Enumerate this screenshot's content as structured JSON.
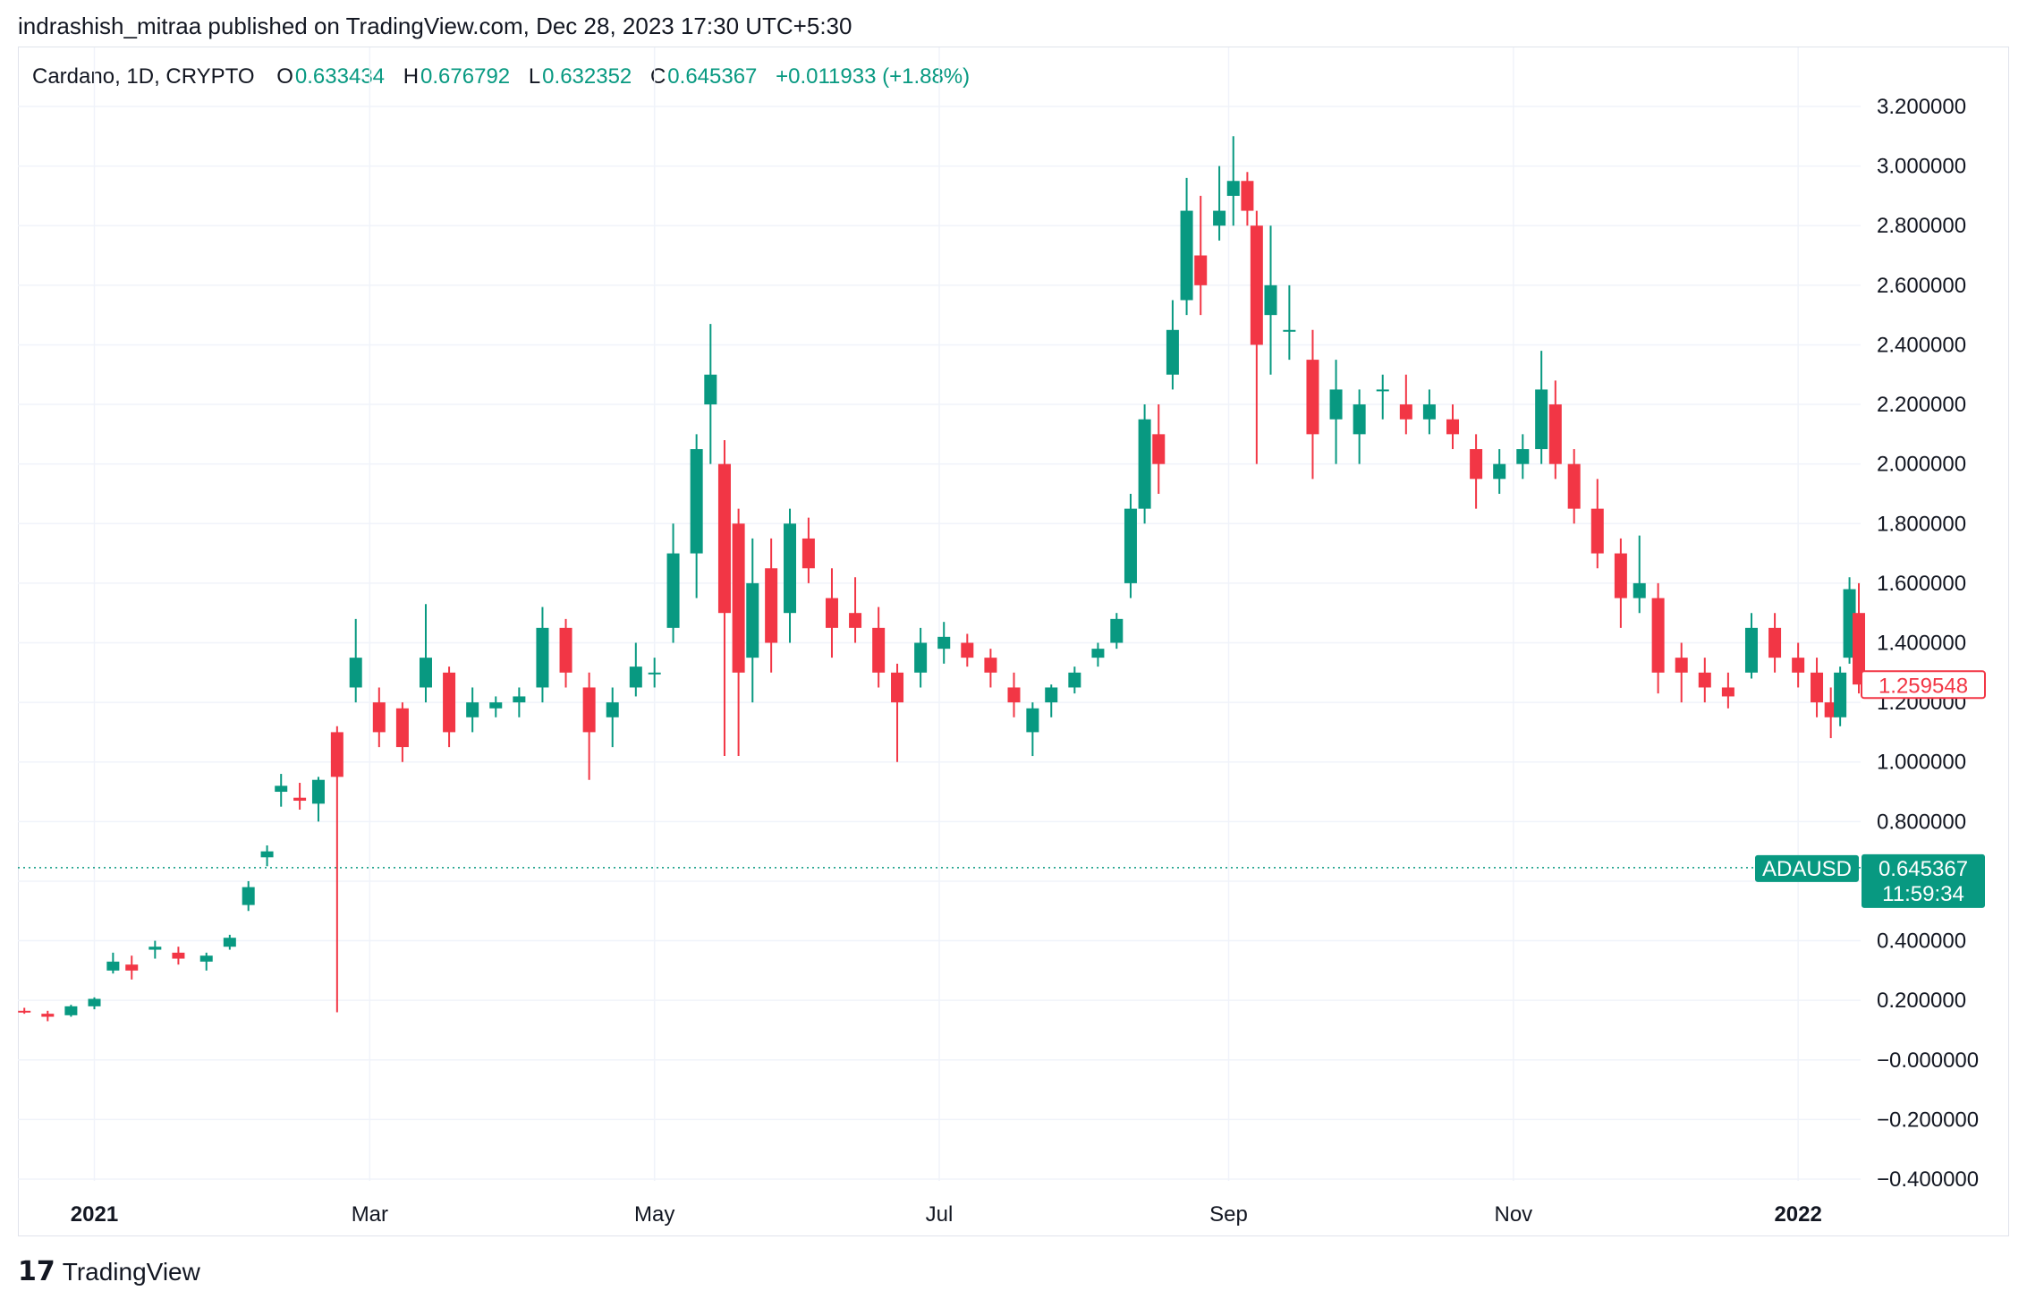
{
  "publisher_line": "indrashish_mitraa published on TradingView.com, Dec 28, 2023 17:30 UTC+5:30",
  "legend": {
    "symbol": "Cardano, 1D, CRYPTO",
    "o_label": "O",
    "o_value": "0.633434",
    "h_label": "H",
    "h_value": "0.676792",
    "l_label": "L",
    "l_value": "0.632352",
    "c_label": "C",
    "c_value": "0.645367",
    "change": "+0.011933 (+1.88%)"
  },
  "colors": {
    "up": "#089981",
    "down": "#f23645",
    "grid": "#f0f3fa",
    "axis_text": "#131722"
  },
  "price_axis": {
    "labels": [
      "3.200000",
      "3.000000",
      "2.800000",
      "2.600000",
      "2.400000",
      "2.200000",
      "2.000000",
      "1.800000",
      "1.600000",
      "1.400000",
      "1.200000",
      "1.000000",
      "0.800000",
      "0.400000",
      "0.200000",
      "−0.000000",
      "−0.200000",
      "−0.400000"
    ]
  },
  "time_axis": {
    "labels": [
      {
        "text": "2021",
        "bold": true
      },
      {
        "text": "Mar",
        "bold": false
      },
      {
        "text": "May",
        "bold": false
      },
      {
        "text": "Jul",
        "bold": false
      },
      {
        "text": "Sep",
        "bold": false
      },
      {
        "text": "Nov",
        "bold": false
      },
      {
        "text": "2022",
        "bold": true
      }
    ]
  },
  "last_price_badge": "1.259548",
  "current_badge": {
    "symbol": "ADAUSD",
    "price": "0.645367",
    "countdown": "11:59:34"
  },
  "footer": {
    "brand": "TradingView",
    "mark": "17"
  },
  "chart_data": {
    "type": "candlestick",
    "title": "Cardano, 1D, CRYPTO",
    "ylim": [
      -0.4,
      3.3
    ],
    "x_start": "2020-12-16",
    "x_end": "2022-01-14",
    "current_price_line": 0.645367,
    "ohlc": [
      [
        "2020-12-17",
        0.165,
        0.175,
        0.155,
        0.16
      ],
      [
        "2020-12-22",
        0.155,
        0.165,
        0.13,
        0.145
      ],
      [
        "2020-12-27",
        0.15,
        0.185,
        0.145,
        0.18
      ],
      [
        "2021-01-01",
        0.18,
        0.21,
        0.17,
        0.205
      ],
      [
        "2021-01-05",
        0.3,
        0.36,
        0.29,
        0.33
      ],
      [
        "2021-01-09",
        0.32,
        0.35,
        0.27,
        0.3
      ],
      [
        "2021-01-14",
        0.37,
        0.4,
        0.34,
        0.38
      ],
      [
        "2021-01-19",
        0.36,
        0.38,
        0.32,
        0.34
      ],
      [
        "2021-01-25",
        0.33,
        0.36,
        0.3,
        0.35
      ],
      [
        "2021-01-30",
        0.38,
        0.42,
        0.37,
        0.41
      ],
      [
        "2021-02-03",
        0.52,
        0.6,
        0.5,
        0.58
      ],
      [
        "2021-02-07",
        0.68,
        0.72,
        0.65,
        0.7
      ],
      [
        "2021-02-10",
        0.9,
        0.96,
        0.85,
        0.92
      ],
      [
        "2021-02-14",
        0.88,
        0.93,
        0.84,
        0.87
      ],
      [
        "2021-02-18",
        0.86,
        0.95,
        0.8,
        0.94
      ],
      [
        "2021-02-22",
        1.1,
        1.12,
        0.16,
        0.95
      ],
      [
        "2021-02-26",
        1.25,
        1.48,
        1.2,
        1.35
      ],
      [
        "2021-03-03",
        1.2,
        1.25,
        1.05,
        1.1
      ],
      [
        "2021-03-08",
        1.18,
        1.2,
        1.0,
        1.05
      ],
      [
        "2021-03-13",
        1.25,
        1.53,
        1.2,
        1.35
      ],
      [
        "2021-03-18",
        1.3,
        1.32,
        1.05,
        1.1
      ],
      [
        "2021-03-23",
        1.15,
        1.25,
        1.1,
        1.2
      ],
      [
        "2021-03-28",
        1.18,
        1.22,
        1.15,
        1.2
      ],
      [
        "2021-04-02",
        1.2,
        1.25,
        1.15,
        1.22
      ],
      [
        "2021-04-07",
        1.25,
        1.52,
        1.2,
        1.45
      ],
      [
        "2021-04-12",
        1.45,
        1.48,
        1.25,
        1.3
      ],
      [
        "2021-04-17",
        1.25,
        1.3,
        0.94,
        1.1
      ],
      [
        "2021-04-22",
        1.15,
        1.25,
        1.05,
        1.2
      ],
      [
        "2021-04-27",
        1.25,
        1.4,
        1.22,
        1.32
      ],
      [
        "2021-05-01",
        1.3,
        1.35,
        1.25,
        1.3
      ],
      [
        "2021-05-05",
        1.45,
        1.8,
        1.4,
        1.7
      ],
      [
        "2021-05-10",
        1.7,
        2.1,
        1.55,
        2.05
      ],
      [
        "2021-05-13",
        2.2,
        2.47,
        2.0,
        2.3
      ],
      [
        "2021-05-16",
        2.0,
        2.08,
        1.02,
        1.5
      ],
      [
        "2021-05-19",
        1.8,
        1.85,
        1.02,
        1.3
      ],
      [
        "2021-05-22",
        1.35,
        1.75,
        1.2,
        1.6
      ],
      [
        "2021-05-26",
        1.65,
        1.75,
        1.3,
        1.4
      ],
      [
        "2021-05-30",
        1.5,
        1.85,
        1.4,
        1.8
      ],
      [
        "2021-06-03",
        1.75,
        1.82,
        1.6,
        1.65
      ],
      [
        "2021-06-08",
        1.55,
        1.65,
        1.35,
        1.45
      ],
      [
        "2021-06-13",
        1.5,
        1.62,
        1.4,
        1.45
      ],
      [
        "2021-06-18",
        1.45,
        1.52,
        1.25,
        1.3
      ],
      [
        "2021-06-22",
        1.3,
        1.33,
        1.0,
        1.2
      ],
      [
        "2021-06-27",
        1.3,
        1.45,
        1.25,
        1.4
      ],
      [
        "2021-07-02",
        1.38,
        1.47,
        1.33,
        1.42
      ],
      [
        "2021-07-07",
        1.4,
        1.43,
        1.32,
        1.35
      ],
      [
        "2021-07-12",
        1.35,
        1.38,
        1.25,
        1.3
      ],
      [
        "2021-07-17",
        1.25,
        1.3,
        1.15,
        1.2
      ],
      [
        "2021-07-21",
        1.1,
        1.2,
        1.02,
        1.18
      ],
      [
        "2021-07-25",
        1.2,
        1.26,
        1.15,
        1.25
      ],
      [
        "2021-07-30",
        1.25,
        1.32,
        1.23,
        1.3
      ],
      [
        "2021-08-04",
        1.35,
        1.4,
        1.32,
        1.38
      ],
      [
        "2021-08-08",
        1.4,
        1.5,
        1.38,
        1.48
      ],
      [
        "2021-08-11",
        1.6,
        1.9,
        1.55,
        1.85
      ],
      [
        "2021-08-14",
        1.85,
        2.2,
        1.8,
        2.15
      ],
      [
        "2021-08-17",
        2.1,
        2.2,
        1.9,
        2.0
      ],
      [
        "2021-08-20",
        2.3,
        2.55,
        2.25,
        2.45
      ],
      [
        "2021-08-23",
        2.55,
        2.96,
        2.5,
        2.85
      ],
      [
        "2021-08-26",
        2.7,
        2.9,
        2.5,
        2.6
      ],
      [
        "2021-08-30",
        2.8,
        3.0,
        2.75,
        2.85
      ],
      [
        "2021-09-02",
        2.9,
        3.1,
        2.8,
        2.95
      ],
      [
        "2021-09-05",
        2.95,
        2.98,
        2.8,
        2.85
      ],
      [
        "2021-09-07",
        2.8,
        2.85,
        2.0,
        2.4
      ],
      [
        "2021-09-10",
        2.5,
        2.8,
        2.3,
        2.6
      ],
      [
        "2021-09-14",
        2.45,
        2.6,
        2.35,
        2.45
      ],
      [
        "2021-09-19",
        2.35,
        2.45,
        1.95,
        2.1
      ],
      [
        "2021-09-24",
        2.15,
        2.35,
        2.0,
        2.25
      ],
      [
        "2021-09-29",
        2.1,
        2.25,
        2.0,
        2.2
      ],
      [
        "2021-10-04",
        2.25,
        2.3,
        2.15,
        2.25
      ],
      [
        "2021-10-09",
        2.2,
        2.3,
        2.1,
        2.15
      ],
      [
        "2021-10-14",
        2.15,
        2.25,
        2.1,
        2.2
      ],
      [
        "2021-10-19",
        2.15,
        2.2,
        2.05,
        2.1
      ],
      [
        "2021-10-24",
        2.05,
        2.1,
        1.85,
        1.95
      ],
      [
        "2021-10-29",
        1.95,
        2.05,
        1.9,
        2.0
      ],
      [
        "2021-11-03",
        2.0,
        2.1,
        1.95,
        2.05
      ],
      [
        "2021-11-07",
        2.05,
        2.38,
        2.0,
        2.25
      ],
      [
        "2021-11-10",
        2.2,
        2.28,
        1.95,
        2.0
      ],
      [
        "2021-11-14",
        2.0,
        2.05,
        1.8,
        1.85
      ],
      [
        "2021-11-19",
        1.85,
        1.95,
        1.65,
        1.7
      ],
      [
        "2021-11-24",
        1.7,
        1.75,
        1.45,
        1.55
      ],
      [
        "2021-11-28",
        1.55,
        1.76,
        1.5,
        1.6
      ],
      [
        "2021-12-02",
        1.55,
        1.6,
        1.23,
        1.3
      ],
      [
        "2021-12-07",
        1.35,
        1.4,
        1.2,
        1.3
      ],
      [
        "2021-12-12",
        1.3,
        1.35,
        1.2,
        1.25
      ],
      [
        "2021-12-17",
        1.25,
        1.3,
        1.18,
        1.22
      ],
      [
        "2021-12-22",
        1.3,
        1.5,
        1.28,
        1.45
      ],
      [
        "2021-12-27",
        1.45,
        1.5,
        1.3,
        1.35
      ],
      [
        "2022-01-01",
        1.35,
        1.4,
        1.25,
        1.3
      ],
      [
        "2022-01-05",
        1.3,
        1.35,
        1.15,
        1.2
      ],
      [
        "2022-01-08",
        1.2,
        1.25,
        1.08,
        1.15
      ],
      [
        "2022-01-10",
        1.15,
        1.32,
        1.12,
        1.3
      ],
      [
        "2022-01-12",
        1.35,
        1.62,
        1.33,
        1.58
      ],
      [
        "2022-01-14",
        1.5,
        1.6,
        1.23,
        1.26
      ]
    ]
  }
}
